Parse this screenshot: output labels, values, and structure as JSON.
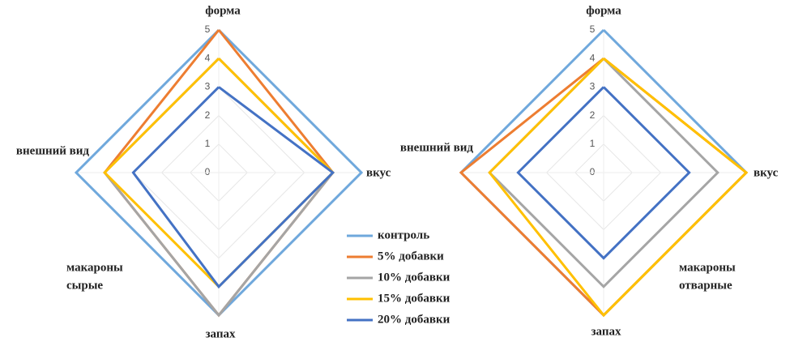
{
  "chart_data": [
    {
      "type": "radar",
      "title_lines": [
        "макароны",
        "сырые"
      ],
      "categories": [
        "форма",
        "вкус",
        "запах",
        "внешний вид"
      ],
      "rlim": [
        0,
        5
      ],
      "rticks": [
        0,
        1,
        2,
        3,
        4,
        5
      ],
      "grid": true,
      "series": [
        {
          "name": "контроль",
          "color": "#6fa8dc",
          "values": [
            5,
            5,
            5,
            5
          ]
        },
        {
          "name": "5% добавки",
          "color": "#ed7d31",
          "values": [
            5,
            4,
            5,
            4
          ]
        },
        {
          "name": "10% добавки",
          "color": "#a5a5a5",
          "values": [
            4,
            4,
            5,
            4
          ]
        },
        {
          "name": "15% добавки",
          "color": "#ffc000",
          "values": [
            4,
            4,
            4,
            4
          ]
        },
        {
          "name": "20% добавки",
          "color": "#4472c4",
          "values": [
            3,
            4,
            4,
            3
          ]
        }
      ]
    },
    {
      "type": "radar",
      "title_lines": [
        "макароны",
        "отварные"
      ],
      "categories": [
        "форма",
        "вкус",
        "запах",
        "внешний вид"
      ],
      "rlim": [
        0,
        5
      ],
      "rticks": [
        0,
        1,
        2,
        3,
        4,
        5
      ],
      "grid": true,
      "series": [
        {
          "color": "#6fa8dc",
          "values": [
            5,
            5,
            5,
            5
          ]
        },
        {
          "color": "#ed7d31",
          "values": [
            4,
            5,
            5,
            5
          ]
        },
        {
          "color": "#a5a5a5",
          "values": [
            4,
            4,
            4,
            4
          ]
        },
        {
          "color": "#ffc000",
          "values": [
            4,
            5,
            5,
            4
          ]
        },
        {
          "color": "#4472c4",
          "values": [
            3,
            3,
            3,
            3
          ]
        }
      ]
    }
  ]
}
